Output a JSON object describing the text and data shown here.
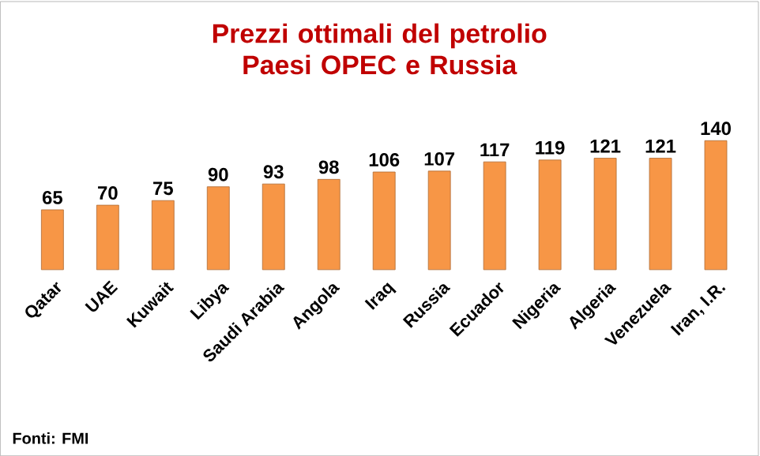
{
  "chart_data": {
    "type": "bar",
    "title": "Prezzi ottimali del petrolio\nPaesi OPEC e Russia",
    "categories": [
      "Qatar",
      "UAE",
      "Kuwait",
      "Libya",
      "Saudi Arabia",
      "Angola",
      "Iraq",
      "Russia",
      "Ecuador",
      "Nigeria",
      "Algeria",
      "Venezuela",
      "Iran, I.R."
    ],
    "values": [
      65,
      70,
      75,
      90,
      93,
      98,
      106,
      107,
      117,
      119,
      121,
      121,
      140
    ],
    "color": "#f79646",
    "data_labels": true,
    "annotations": [
      "Fonti: FMI"
    ]
  }
}
